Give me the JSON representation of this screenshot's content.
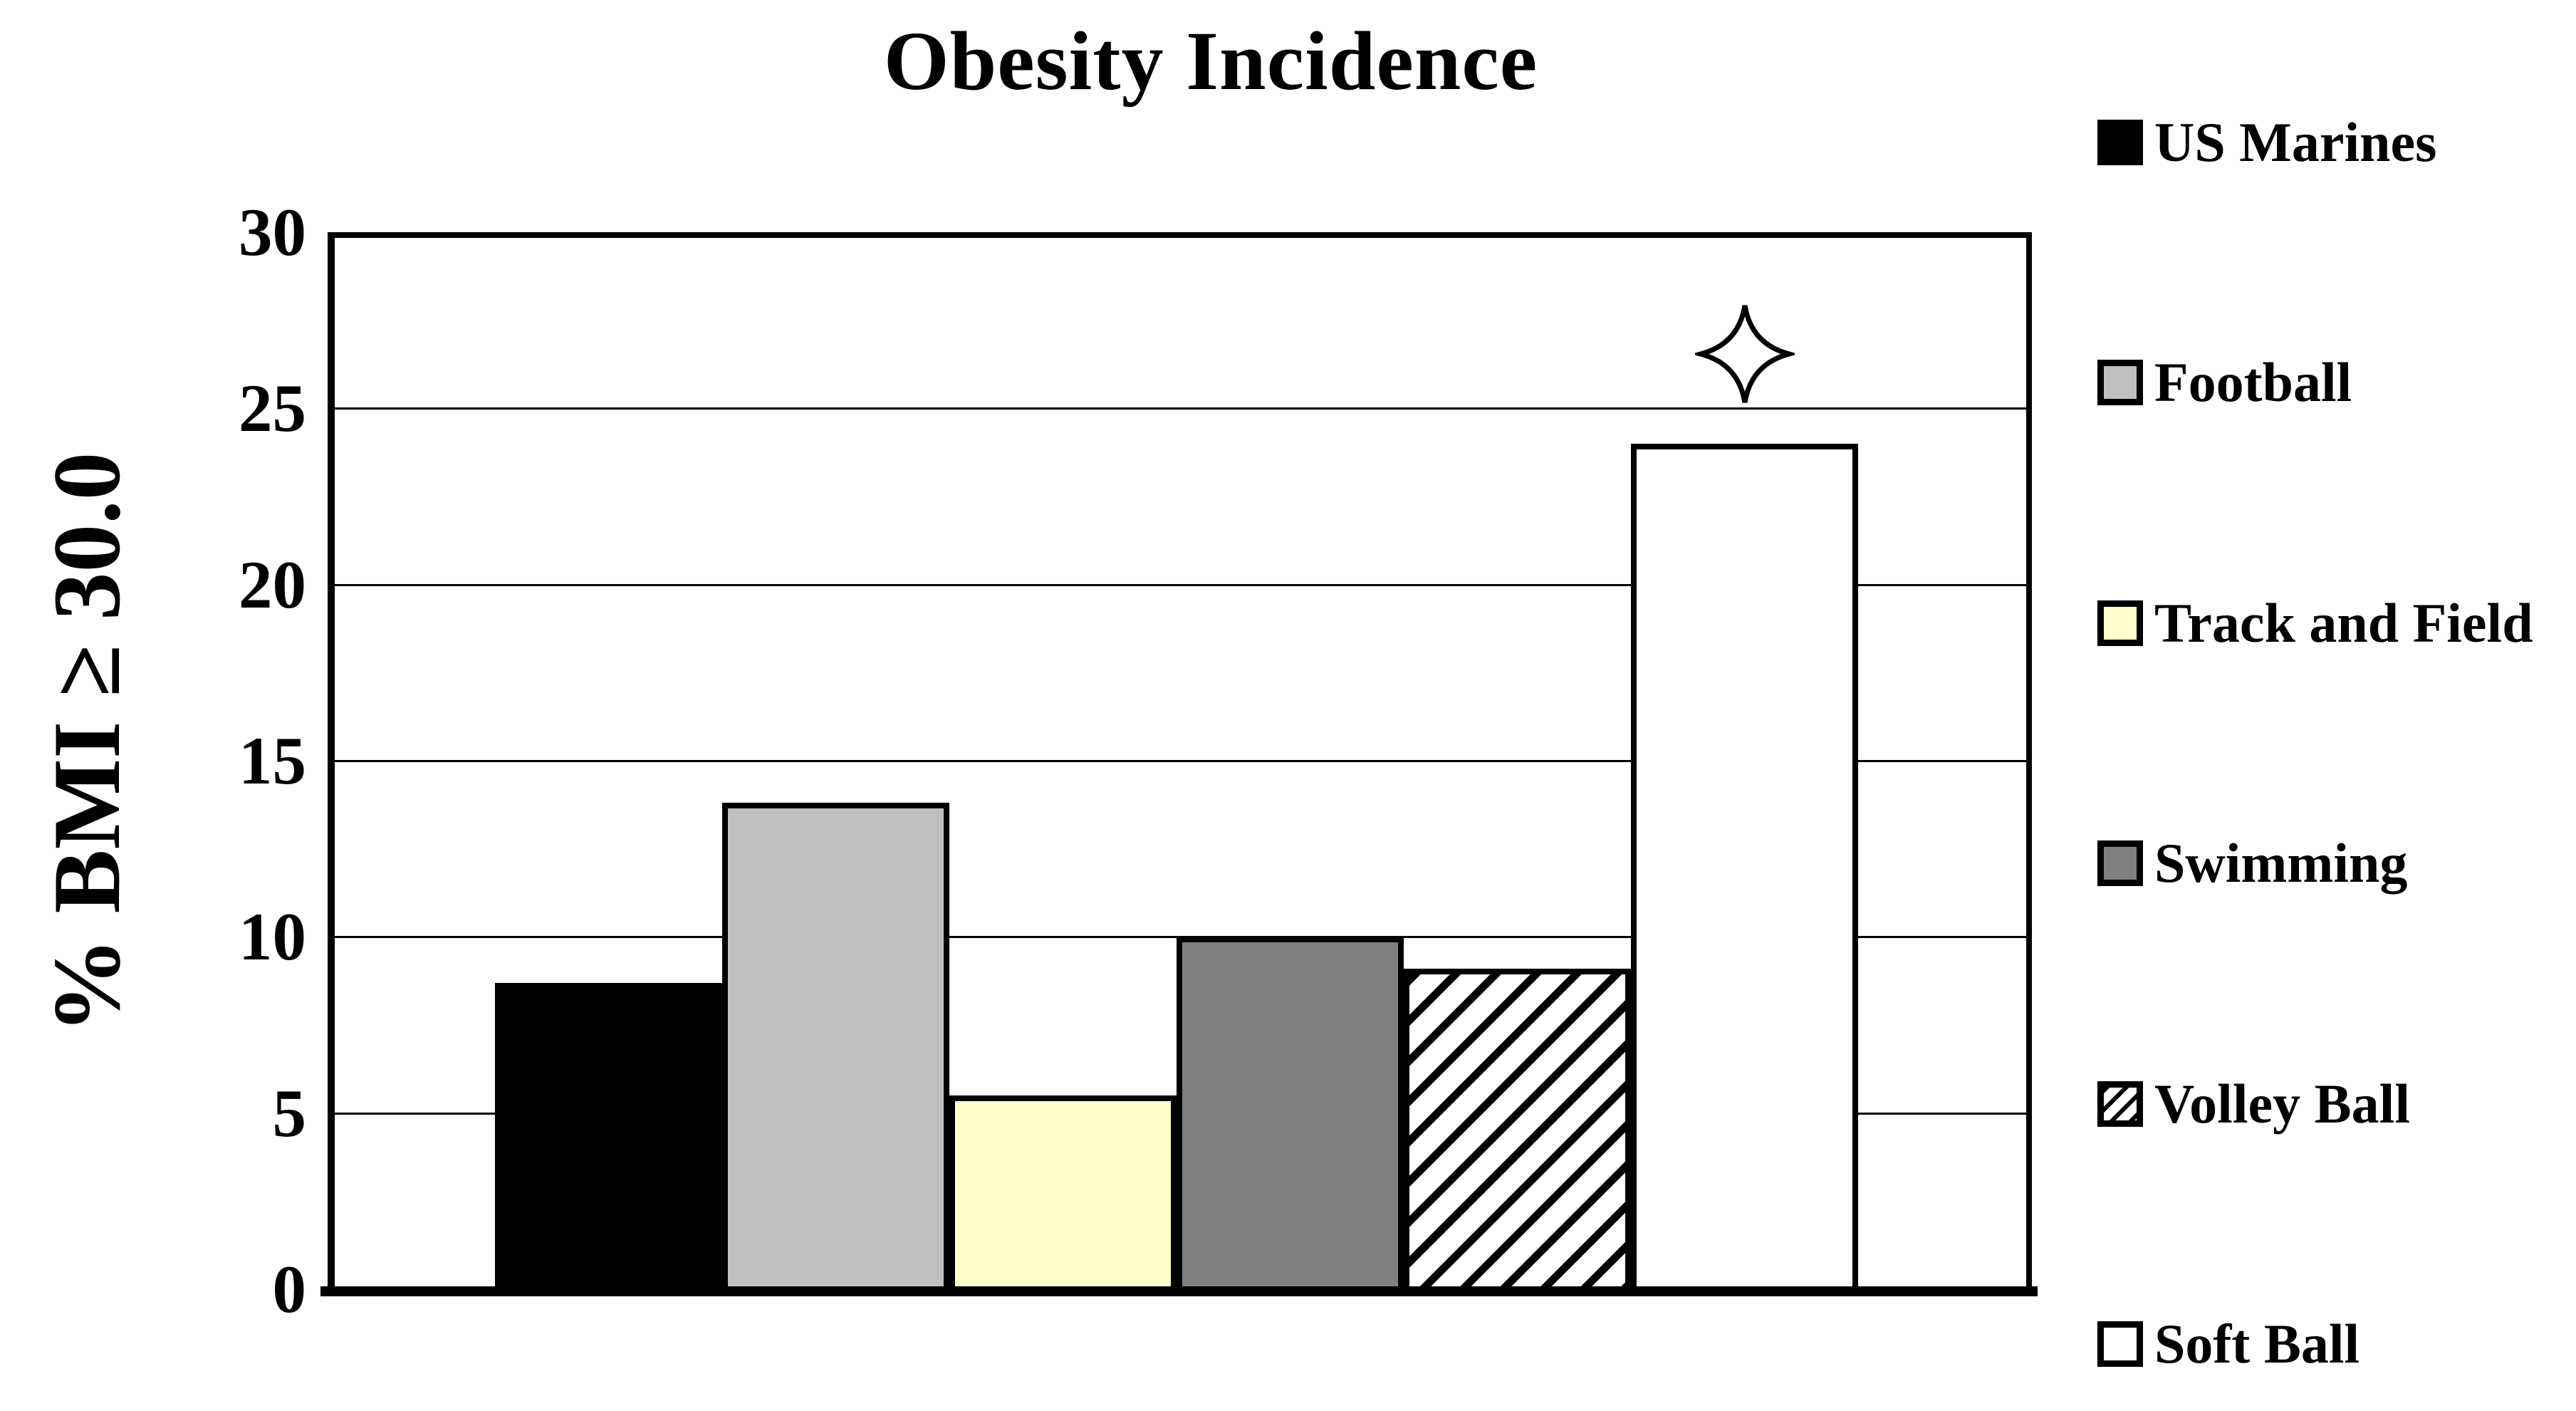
{
  "title": "Obesity Incidence",
  "y_axis": {
    "label": "% BMI ≥ 30.0",
    "tick_labels": [
      "30",
      "25",
      "20",
      "15",
      "10",
      "5",
      "0"
    ]
  },
  "legend": {
    "position": "right",
    "items": [
      "US Marines",
      "Football",
      "Track and Field",
      "Swimming",
      "Volley Ball",
      "Soft Ball"
    ]
  },
  "annotation": {
    "symbol": "four-pointed-star",
    "above_series": "Soft Ball",
    "approx_y_value": 26.5
  },
  "colors": {
    "us_marines": "#000000",
    "football": "#c0c0c0",
    "track_and_field": "#ffffcc",
    "swimming": "#808080",
    "volley_ball": "diagonal-hatch-black-on-white",
    "soft_ball": "#ffffff",
    "bar_outline": "#000000"
  },
  "chart_data": {
    "type": "bar",
    "title": "Obesity Incidence",
    "xlabel": "",
    "ylabel": "% BMI ≥ 30.0",
    "ylim": [
      0,
      30
    ],
    "yticks": [
      0,
      5,
      10,
      15,
      20,
      25,
      30
    ],
    "grid": true,
    "legend_position": "right",
    "categories": [
      "US Marines",
      "Football",
      "Track and Field",
      "Swimming",
      "Volley Ball",
      "Soft Ball"
    ],
    "values": [
      8.7,
      13.8,
      5.5,
      10.0,
      9.1,
      24.0
    ],
    "fills": [
      "#000000",
      "#c0c0c0",
      "#ffffcc",
      "#808080",
      "diagonal-hatch",
      "#ffffff"
    ]
  }
}
